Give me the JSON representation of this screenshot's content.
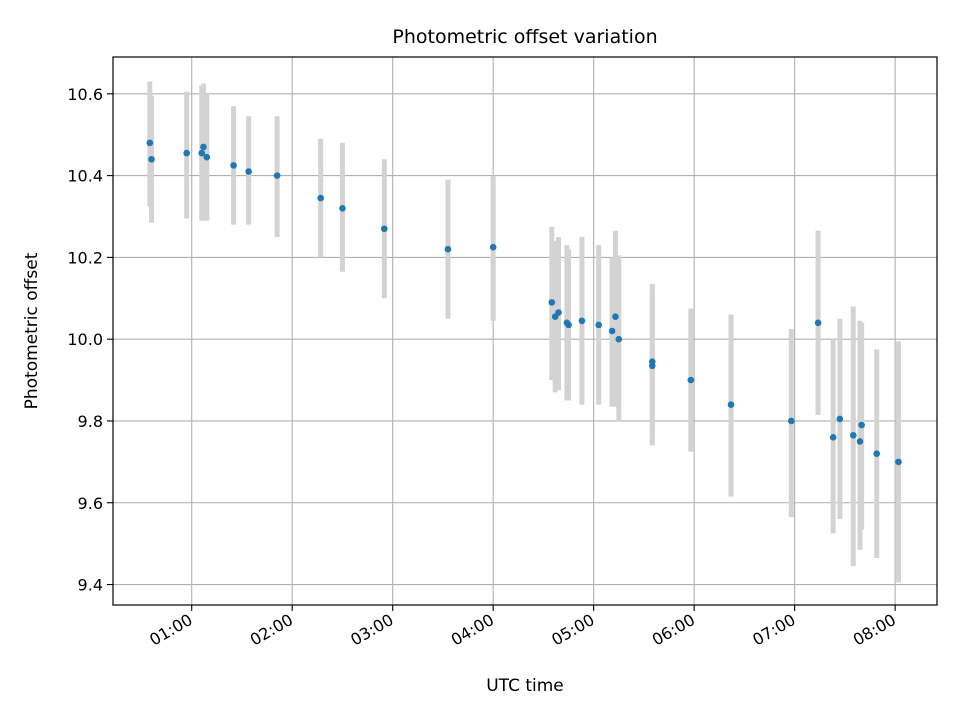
{
  "chart_data": {
    "type": "scatter",
    "title": "Photometric offset variation",
    "xlabel": "UTC time",
    "ylabel": "Photometric offset",
    "x_tick_labels": [
      "01:00",
      "02:00",
      "03:00",
      "04:00",
      "05:00",
      "06:00",
      "07:00",
      "08:00"
    ],
    "y_tick_labels": [
      "9.4",
      "9.6",
      "9.8",
      "10.0",
      "10.2",
      "10.4",
      "10.6"
    ],
    "y_ticks": [
      9.4,
      9.6,
      9.8,
      10.0,
      10.2,
      10.4,
      10.6
    ],
    "xlim": [
      "00:13",
      "08:25"
    ],
    "ylim": [
      9.35,
      10.69
    ],
    "grid": true,
    "errorbar_color": "#d3d3d3",
    "marker_color": "#1f77b4",
    "points": [
      {
        "x": "00:35",
        "y": 10.48,
        "err_low": 10.325,
        "err_high": 10.63
      },
      {
        "x": "00:36",
        "y": 10.44,
        "err_low": 10.285,
        "err_high": 10.595
      },
      {
        "x": "00:57",
        "y": 10.455,
        "err_low": 10.295,
        "err_high": 10.605
      },
      {
        "x": "01:06",
        "y": 10.455,
        "err_low": 10.29,
        "err_high": 10.62
      },
      {
        "x": "01:07",
        "y": 10.47,
        "err_low": 10.29,
        "err_high": 10.625
      },
      {
        "x": "01:09",
        "y": 10.445,
        "err_low": 10.29,
        "err_high": 10.6
      },
      {
        "x": "01:25",
        "y": 10.425,
        "err_low": 10.28,
        "err_high": 10.57
      },
      {
        "x": "01:34",
        "y": 10.41,
        "err_low": 10.28,
        "err_high": 10.545
      },
      {
        "x": "01:51",
        "y": 10.4,
        "err_low": 10.25,
        "err_high": 10.545
      },
      {
        "x": "02:17",
        "y": 10.345,
        "err_low": 10.2,
        "err_high": 10.49
      },
      {
        "x": "02:30",
        "y": 10.32,
        "err_low": 10.165,
        "err_high": 10.48
      },
      {
        "x": "02:55",
        "y": 10.27,
        "err_low": 10.1,
        "err_high": 10.44
      },
      {
        "x": "03:33",
        "y": 10.22,
        "err_low": 10.05,
        "err_high": 10.39
      },
      {
        "x": "04:00",
        "y": 10.225,
        "err_low": 10.045,
        "err_high": 10.4
      },
      {
        "x": "04:35",
        "y": 10.09,
        "err_low": 9.9,
        "err_high": 10.275
      },
      {
        "x": "04:37",
        "y": 10.055,
        "err_low": 9.87,
        "err_high": 10.24
      },
      {
        "x": "04:39",
        "y": 10.065,
        "err_low": 9.875,
        "err_high": 10.25
      },
      {
        "x": "04:44",
        "y": 10.04,
        "err_low": 9.85,
        "err_high": 10.23
      },
      {
        "x": "04:45",
        "y": 10.035,
        "err_low": 9.85,
        "err_high": 10.22
      },
      {
        "x": "04:53",
        "y": 10.045,
        "err_low": 9.84,
        "err_high": 10.25
      },
      {
        "x": "05:03",
        "y": 10.035,
        "err_low": 9.84,
        "err_high": 10.23
      },
      {
        "x": "05:11",
        "y": 10.02,
        "err_low": 9.835,
        "err_high": 10.2
      },
      {
        "x": "05:13",
        "y": 10.055,
        "err_low": 9.835,
        "err_high": 10.265
      },
      {
        "x": "05:15",
        "y": 10.0,
        "err_low": 9.8,
        "err_high": 10.205
      },
      {
        "x": "05:35",
        "y": 9.945,
        "err_low": 9.76,
        "err_high": 10.135
      },
      {
        "x": "05:35",
        "y": 9.935,
        "err_low": 9.74,
        "err_high": 10.12
      },
      {
        "x": "05:58",
        "y": 9.9,
        "err_low": 9.725,
        "err_high": 10.075
      },
      {
        "x": "06:22",
        "y": 9.84,
        "err_low": 9.615,
        "err_high": 10.06
      },
      {
        "x": "06:58",
        "y": 9.8,
        "err_low": 9.565,
        "err_high": 10.025
      },
      {
        "x": "07:14",
        "y": 10.04,
        "err_low": 9.815,
        "err_high": 10.265
      },
      {
        "x": "07:23",
        "y": 9.76,
        "err_low": 9.525,
        "err_high": 10.0
      },
      {
        "x": "07:27",
        "y": 9.805,
        "err_low": 9.56,
        "err_high": 10.05
      },
      {
        "x": "07:35",
        "y": 9.765,
        "err_low": 9.445,
        "err_high": 10.08
      },
      {
        "x": "07:39",
        "y": 9.75,
        "err_low": 9.485,
        "err_high": 10.045
      },
      {
        "x": "07:40",
        "y": 9.79,
        "err_low": 9.535,
        "err_high": 10.04
      },
      {
        "x": "07:49",
        "y": 9.72,
        "err_low": 9.465,
        "err_high": 9.975
      },
      {
        "x": "08:02",
        "y": 9.7,
        "err_low": 9.405,
        "err_high": 9.995
      }
    ]
  }
}
